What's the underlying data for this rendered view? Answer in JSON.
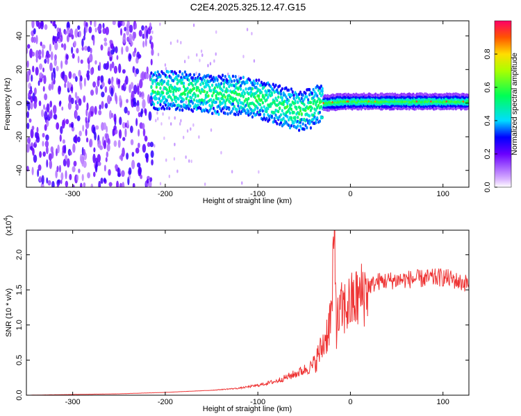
{
  "title": "C2E4.2025.325.12.47.G15",
  "chart_data": [
    {
      "type": "heatmap",
      "xlabel": "Height of straight line (km)",
      "ylabel": "Frequency (Hz)",
      "xlim": [
        -350,
        128
      ],
      "ylim": [
        -50,
        49
      ],
      "x_ticks": [
        -300,
        -200,
        -100,
        0,
        100
      ],
      "y_ticks": [
        -40,
        -20,
        0,
        20,
        40
      ],
      "colorbar": {
        "label": "Normalized spectral amplitude",
        "range": [
          0,
          1
        ],
        "ticks": [
          "0.0",
          "0.2",
          "0.4",
          "0.6",
          "0.8"
        ]
      },
      "ridge": {
        "x": [
          -215,
          -190,
          -160,
          -130,
          -100,
          -80,
          -60,
          -50,
          -40,
          -30,
          -10,
          0,
          20,
          60,
          100,
          128
        ],
        "y": [
          8,
          7,
          6,
          5,
          3,
          -1,
          -4,
          -5,
          -2,
          0,
          1,
          1,
          1,
          1,
          1,
          1
        ]
      },
      "noise_region_x": [
        -350,
        -215
      ]
    },
    {
      "type": "line",
      "xlabel": "Height of straight line (km)",
      "ylabel": "SNR (10 * v/v)",
      "y_multiplier": "(x10",
      "y_multiplier_exp": "4",
      "xlim": [
        -350,
        128
      ],
      "ylim": [
        0,
        2.35
      ],
      "x_ticks": [
        -300,
        -200,
        -100,
        0,
        100
      ],
      "y_ticks": [
        0.0,
        0.5,
        1.0,
        1.5,
        2.0
      ],
      "color": "#ee3333",
      "series": [
        {
          "x": [
            -350,
            -300,
            -250,
            -200,
            -150,
            -120,
            -100,
            -80,
            -60,
            -40,
            -30,
            -25,
            -20,
            -17,
            -15,
            -10,
            -5,
            0,
            10,
            20,
            30,
            40,
            60,
            80,
            100,
            110,
            120,
            128
          ],
          "y": [
            0.0,
            0.01,
            0.02,
            0.04,
            0.07,
            0.1,
            0.14,
            0.2,
            0.3,
            0.42,
            0.7,
            0.9,
            1.2,
            2.35,
            1.0,
            1.2,
            1.25,
            1.3,
            1.4,
            1.55,
            1.62,
            1.63,
            1.65,
            1.66,
            1.68,
            1.65,
            1.6,
            1.6
          ]
        }
      ]
    }
  ]
}
